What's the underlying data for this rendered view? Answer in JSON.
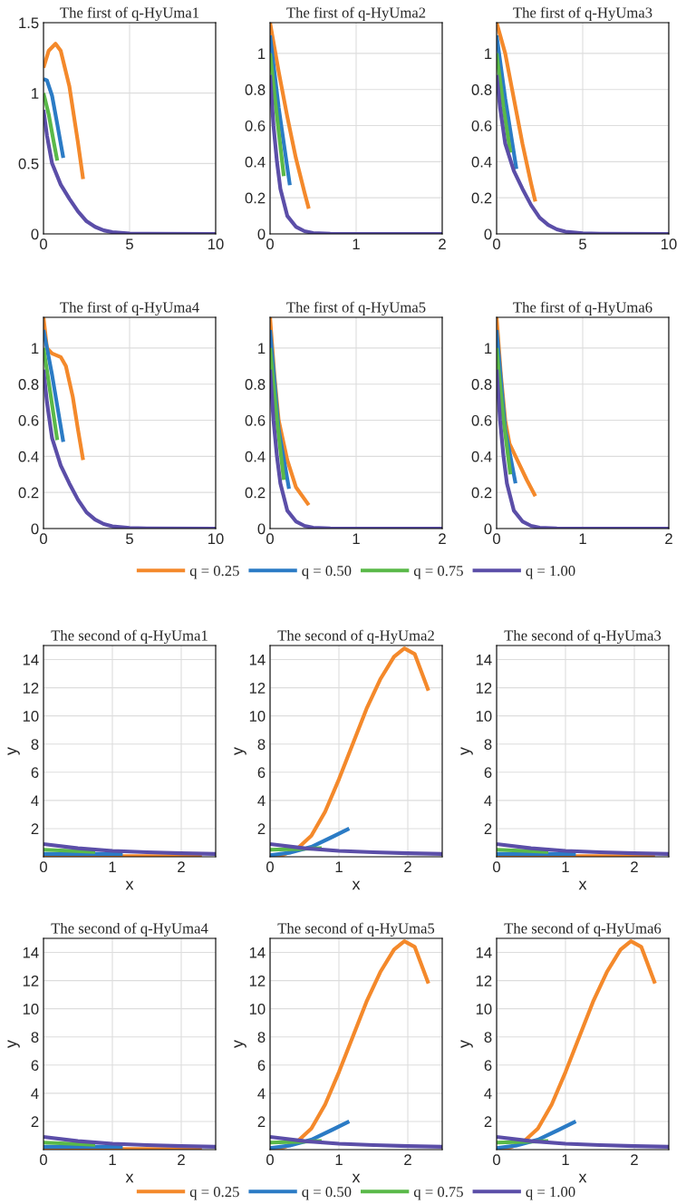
{
  "chart_data": [
    {
      "type": "line",
      "title": "The first of q-HyUma1",
      "xlim": [
        0,
        10
      ],
      "xticks": [
        0,
        5,
        10
      ],
      "ylim": [
        0,
        1.5
      ],
      "yticks": [
        0,
        0.5,
        1,
        1.5
      ],
      "grid": true,
      "series": [
        {
          "color": "#f4892b",
          "x": [
            0,
            0.3,
            0.7,
            1.0,
            1.5,
            2.0,
            2.3
          ],
          "values": [
            1.18,
            1.3,
            1.35,
            1.3,
            1.05,
            0.65,
            0.39
          ]
        },
        {
          "color": "#2b7bc5",
          "x": [
            0,
            0.2,
            0.5,
            0.8,
            1.15
          ],
          "values": [
            1.1,
            1.09,
            0.98,
            0.78,
            0.54
          ]
        },
        {
          "color": "#5ab949",
          "x": [
            0,
            0.3,
            0.6,
            0.8
          ],
          "values": [
            1.0,
            0.85,
            0.65,
            0.52
          ]
        },
        {
          "color": "#5b4ea8",
          "x": [
            0,
            0.2,
            0.5,
            1,
            1.5,
            2,
            2.5,
            3,
            3.5,
            4,
            5,
            6,
            10
          ],
          "values": [
            0.88,
            0.7,
            0.5,
            0.35,
            0.25,
            0.16,
            0.09,
            0.05,
            0.025,
            0.012,
            0.003,
            0.001,
            0
          ]
        }
      ]
    },
    {
      "type": "line",
      "title": "The first of q-HyUma2",
      "xlim": [
        0,
        2
      ],
      "xticks": [
        0,
        1,
        2
      ],
      "ylim": [
        0,
        1.17
      ],
      "yticks": [
        0,
        0.2,
        0.4,
        0.6,
        0.8,
        1
      ],
      "grid": true,
      "series": [
        {
          "color": "#f4892b",
          "x": [
            0,
            0.1,
            0.2,
            0.3,
            0.4,
            0.45
          ],
          "values": [
            1.17,
            0.9,
            0.65,
            0.42,
            0.23,
            0.14
          ]
        },
        {
          "color": "#2b7bc5",
          "x": [
            0,
            0.1,
            0.23
          ],
          "values": [
            1.1,
            0.7,
            0.27
          ]
        },
        {
          "color": "#5ab949",
          "x": [
            0,
            0.08,
            0.16
          ],
          "values": [
            1.0,
            0.65,
            0.32
          ]
        },
        {
          "color": "#5b4ea8",
          "x": [
            0,
            0.04,
            0.08,
            0.12,
            0.2,
            0.3,
            0.4,
            0.5,
            0.7,
            2
          ],
          "values": [
            0.88,
            0.6,
            0.4,
            0.25,
            0.1,
            0.04,
            0.015,
            0.005,
            0.001,
            0
          ]
        }
      ]
    },
    {
      "type": "line",
      "title": "The first of q-HyUma3",
      "xlim": [
        0,
        10
      ],
      "xticks": [
        0,
        5,
        10
      ],
      "ylim": [
        0,
        1.17
      ],
      "yticks": [
        0,
        0.2,
        0.4,
        0.6,
        0.8,
        1
      ],
      "grid": true,
      "series": [
        {
          "color": "#f4892b",
          "x": [
            0,
            0.5,
            1.0,
            1.5,
            2.0,
            2.25
          ],
          "values": [
            1.17,
            1.0,
            0.75,
            0.5,
            0.28,
            0.18
          ]
        },
        {
          "color": "#2b7bc5",
          "x": [
            0,
            0.5,
            1.15
          ],
          "values": [
            1.1,
            0.75,
            0.36
          ]
        },
        {
          "color": "#5ab949",
          "x": [
            0,
            0.4,
            0.8
          ],
          "values": [
            1.0,
            0.7,
            0.45
          ]
        },
        {
          "color": "#5b4ea8",
          "x": [
            0,
            0.2,
            0.5,
            1,
            1.5,
            2,
            2.5,
            3,
            3.5,
            4,
            5,
            6,
            10
          ],
          "values": [
            0.88,
            0.7,
            0.5,
            0.35,
            0.25,
            0.16,
            0.09,
            0.05,
            0.025,
            0.012,
            0.003,
            0.001,
            0
          ]
        }
      ]
    },
    {
      "type": "line",
      "title": "The first of q-HyUma4",
      "xlim": [
        0,
        10
      ],
      "xticks": [
        0,
        5,
        10
      ],
      "ylim": [
        0,
        1.17
      ],
      "yticks": [
        0,
        0.2,
        0.4,
        0.6,
        0.8,
        1
      ],
      "grid": true,
      "series": [
        {
          "color": "#f4892b",
          "x": [
            0,
            0.2,
            0.5,
            1.0,
            1.3,
            1.7,
            2.0,
            2.3
          ],
          "values": [
            1.17,
            1.0,
            0.97,
            0.95,
            0.9,
            0.73,
            0.55,
            0.38
          ]
        },
        {
          "color": "#2b7bc5",
          "x": [
            0,
            0.5,
            1.15
          ],
          "values": [
            1.1,
            0.85,
            0.48
          ]
        },
        {
          "color": "#5ab949",
          "x": [
            0,
            0.4,
            0.8
          ],
          "values": [
            1.0,
            0.75,
            0.49
          ]
        },
        {
          "color": "#5b4ea8",
          "x": [
            0,
            0.2,
            0.5,
            1,
            1.5,
            2,
            2.5,
            3,
            3.5,
            4,
            5,
            6,
            10
          ],
          "values": [
            0.88,
            0.7,
            0.5,
            0.35,
            0.25,
            0.16,
            0.09,
            0.05,
            0.025,
            0.012,
            0.003,
            0.001,
            0
          ]
        }
      ]
    },
    {
      "type": "line",
      "title": "The first of q-HyUma5",
      "xlim": [
        0,
        2
      ],
      "xticks": [
        0,
        1,
        2
      ],
      "ylim": [
        0,
        1.17
      ],
      "yticks": [
        0,
        0.2,
        0.4,
        0.6,
        0.8,
        1
      ],
      "grid": true,
      "legend": "bottom",
      "series": [
        {
          "name": "q = 0.25",
          "color": "#f4892b",
          "x": [
            0,
            0.05,
            0.1,
            0.2,
            0.3,
            0.45
          ],
          "values": [
            1.17,
            0.85,
            0.6,
            0.38,
            0.23,
            0.13
          ]
        },
        {
          "name": "q = 0.50",
          "color": "#2b7bc5",
          "x": [
            0,
            0.1,
            0.22
          ],
          "values": [
            1.1,
            0.55,
            0.22
          ]
        },
        {
          "name": "q = 0.75",
          "color": "#5ab949",
          "x": [
            0,
            0.08,
            0.16
          ],
          "values": [
            1.0,
            0.6,
            0.27
          ]
        },
        {
          "name": "q = 1.00",
          "color": "#5b4ea8",
          "x": [
            0,
            0.04,
            0.08,
            0.12,
            0.2,
            0.3,
            0.4,
            0.5,
            0.7,
            2
          ],
          "values": [
            0.88,
            0.6,
            0.4,
            0.25,
            0.1,
            0.04,
            0.015,
            0.005,
            0.001,
            0
          ]
        }
      ]
    },
    {
      "type": "line",
      "title": "The first of q-HyUma6",
      "xlim": [
        0,
        2
      ],
      "xticks": [
        0,
        1,
        2
      ],
      "ylim": [
        0,
        1.17
      ],
      "yticks": [
        0,
        0.2,
        0.4,
        0.6,
        0.8,
        1
      ],
      "grid": true,
      "series": [
        {
          "color": "#f4892b",
          "x": [
            0,
            0.05,
            0.1,
            0.15,
            0.25,
            0.35,
            0.45
          ],
          "values": [
            1.17,
            0.85,
            0.6,
            0.47,
            0.37,
            0.27,
            0.18
          ]
        },
        {
          "color": "#2b7bc5",
          "x": [
            0,
            0.1,
            0.22
          ],
          "values": [
            1.1,
            0.55,
            0.25
          ]
        },
        {
          "color": "#5ab949",
          "x": [
            0,
            0.08,
            0.16
          ],
          "values": [
            1.0,
            0.6,
            0.3
          ]
        },
        {
          "color": "#5b4ea8",
          "x": [
            0,
            0.04,
            0.08,
            0.12,
            0.2,
            0.3,
            0.4,
            0.5,
            0.7,
            2
          ],
          "values": [
            0.88,
            0.6,
            0.4,
            0.25,
            0.1,
            0.04,
            0.015,
            0.005,
            0.001,
            0
          ]
        }
      ]
    },
    {
      "type": "line",
      "title": "The second of q-HyUma1",
      "xlabel": "x",
      "ylabel": "y",
      "xlim": [
        0,
        2.5
      ],
      "xticks": [
        0,
        1,
        2
      ],
      "ylim": [
        0,
        15
      ],
      "yticks": [
        2,
        4,
        6,
        8,
        10,
        12,
        14
      ],
      "grid": true,
      "series": [
        {
          "color": "#f4892b",
          "x": [
            0,
            2.3
          ],
          "values": [
            0.05,
            0.05
          ]
        },
        {
          "color": "#2b7bc5",
          "x": [
            0,
            1.15
          ],
          "values": [
            0.2,
            0.2
          ]
        },
        {
          "color": "#5ab949",
          "x": [
            0,
            0.4,
            0.75
          ],
          "values": [
            0.5,
            0.42,
            0.35
          ]
        },
        {
          "color": "#5b4ea8",
          "x": [
            0,
            0.5,
            1,
            1.5,
            2,
            2.5
          ],
          "values": [
            0.9,
            0.6,
            0.42,
            0.32,
            0.25,
            0.2
          ]
        }
      ]
    },
    {
      "type": "line",
      "title": "The second of q-HyUma2",
      "xlabel": "x",
      "ylabel": "y",
      "xlim": [
        0,
        2.5
      ],
      "xticks": [
        0,
        1,
        2
      ],
      "ylim": [
        0,
        15
      ],
      "yticks": [
        2,
        4,
        6,
        8,
        10,
        12,
        14
      ],
      "grid": true,
      "series": [
        {
          "color": "#f4892b",
          "x": [
            0,
            0.2,
            0.4,
            0.6,
            0.8,
            1.0,
            1.2,
            1.4,
            1.6,
            1.8,
            1.95,
            2.1,
            2.3
          ],
          "values": [
            0,
            0.15,
            0.6,
            1.5,
            3.2,
            5.5,
            8,
            10.5,
            12.6,
            14.2,
            14.8,
            14.4,
            11.8
          ]
        },
        {
          "color": "#2b7bc5",
          "x": [
            0,
            0.3,
            0.6,
            0.9,
            1.15
          ],
          "values": [
            0.1,
            0.3,
            0.7,
            1.4,
            2.0
          ]
        },
        {
          "color": "#5ab949",
          "x": [
            0,
            0.4,
            0.75
          ],
          "values": [
            0.5,
            0.55,
            0.6
          ]
        },
        {
          "color": "#5b4ea8",
          "x": [
            0,
            0.5,
            1,
            1.5,
            2,
            2.5
          ],
          "values": [
            0.9,
            0.6,
            0.42,
            0.32,
            0.25,
            0.2
          ]
        }
      ]
    },
    {
      "type": "line",
      "title": "The second of q-HyUma3",
      "xlabel": "x",
      "ylabel": "y",
      "xlim": [
        0,
        2.5
      ],
      "xticks": [
        0,
        1,
        2
      ],
      "ylim": [
        0,
        15
      ],
      "yticks": [
        2,
        4,
        6,
        8,
        10,
        12,
        14
      ],
      "grid": true,
      "series": [
        {
          "color": "#f4892b",
          "x": [
            0,
            2.3
          ],
          "values": [
            0.05,
            0.05
          ]
        },
        {
          "color": "#2b7bc5",
          "x": [
            0,
            1.15
          ],
          "values": [
            0.2,
            0.2
          ]
        },
        {
          "color": "#5ab949",
          "x": [
            0,
            0.4,
            0.75
          ],
          "values": [
            0.5,
            0.42,
            0.35
          ]
        },
        {
          "color": "#5b4ea8",
          "x": [
            0,
            0.5,
            1,
            1.5,
            2,
            2.5
          ],
          "values": [
            0.9,
            0.6,
            0.42,
            0.32,
            0.25,
            0.2
          ]
        }
      ]
    },
    {
      "type": "line",
      "title": "The second of q-HyUma4",
      "xlabel": "x",
      "ylabel": "y",
      "xlim": [
        0,
        2.5
      ],
      "xticks": [
        0,
        1,
        2
      ],
      "ylim": [
        0,
        15
      ],
      "yticks": [
        2,
        4,
        6,
        8,
        10,
        12,
        14
      ],
      "grid": true,
      "series": [
        {
          "color": "#f4892b",
          "x": [
            0,
            2.3
          ],
          "values": [
            0.05,
            0.05
          ]
        },
        {
          "color": "#2b7bc5",
          "x": [
            0,
            1.15
          ],
          "values": [
            0.2,
            0.2
          ]
        },
        {
          "color": "#5ab949",
          "x": [
            0,
            0.4,
            0.75
          ],
          "values": [
            0.5,
            0.42,
            0.35
          ]
        },
        {
          "color": "#5b4ea8",
          "x": [
            0,
            0.5,
            1,
            1.5,
            2,
            2.5
          ],
          "values": [
            0.9,
            0.6,
            0.42,
            0.32,
            0.25,
            0.2
          ]
        }
      ]
    },
    {
      "type": "line",
      "title": "The second of q-HyUma5",
      "xlabel": "x",
      "ylabel": "y",
      "xlim": [
        0,
        2.5
      ],
      "xticks": [
        0,
        1,
        2
      ],
      "ylim": [
        0,
        15
      ],
      "yticks": [
        2,
        4,
        6,
        8,
        10,
        12,
        14
      ],
      "grid": true,
      "legend": "bottom",
      "series": [
        {
          "name": "q = 0.25",
          "color": "#f4892b",
          "x": [
            0,
            0.2,
            0.4,
            0.6,
            0.8,
            1.0,
            1.2,
            1.4,
            1.6,
            1.8,
            1.95,
            2.1,
            2.3
          ],
          "values": [
            0,
            0.15,
            0.6,
            1.5,
            3.2,
            5.5,
            8,
            10.5,
            12.6,
            14.2,
            14.8,
            14.4,
            11.8
          ]
        },
        {
          "name": "q = 0.50",
          "color": "#2b7bc5",
          "x": [
            0,
            0.3,
            0.6,
            0.9,
            1.15
          ],
          "values": [
            0.1,
            0.3,
            0.7,
            1.4,
            2.0
          ]
        },
        {
          "name": "q = 0.75",
          "color": "#5ab949",
          "x": [
            0,
            0.4,
            0.75
          ],
          "values": [
            0.5,
            0.55,
            0.6
          ]
        },
        {
          "name": "q = 1.00",
          "color": "#5b4ea8",
          "x": [
            0,
            0.5,
            1,
            1.5,
            2,
            2.5
          ],
          "values": [
            0.9,
            0.6,
            0.42,
            0.32,
            0.25,
            0.2
          ]
        }
      ]
    },
    {
      "type": "line",
      "title": "The second of q-HyUma6",
      "xlabel": "x",
      "ylabel": "y",
      "xlim": [
        0,
        2.5
      ],
      "xticks": [
        0,
        1,
        2
      ],
      "ylim": [
        0,
        15
      ],
      "yticks": [
        2,
        4,
        6,
        8,
        10,
        12,
        14
      ],
      "grid": true,
      "series": [
        {
          "color": "#f4892b",
          "x": [
            0,
            0.2,
            0.4,
            0.6,
            0.8,
            1.0,
            1.2,
            1.4,
            1.6,
            1.8,
            1.95,
            2.1,
            2.3
          ],
          "values": [
            0,
            0.15,
            0.6,
            1.5,
            3.2,
            5.5,
            8,
            10.5,
            12.6,
            14.2,
            14.8,
            14.4,
            11.8
          ]
        },
        {
          "color": "#2b7bc5",
          "x": [
            0,
            0.3,
            0.6,
            0.9,
            1.15
          ],
          "values": [
            0.1,
            0.3,
            0.7,
            1.4,
            2.0
          ]
        },
        {
          "color": "#5ab949",
          "x": [
            0,
            0.4,
            0.75
          ],
          "values": [
            0.5,
            0.55,
            0.6
          ]
        },
        {
          "color": "#5b4ea8",
          "x": [
            0,
            0.5,
            1,
            1.5,
            2,
            2.5
          ],
          "values": [
            0.9,
            0.6,
            0.42,
            0.32,
            0.25,
            0.2
          ]
        }
      ]
    }
  ]
}
